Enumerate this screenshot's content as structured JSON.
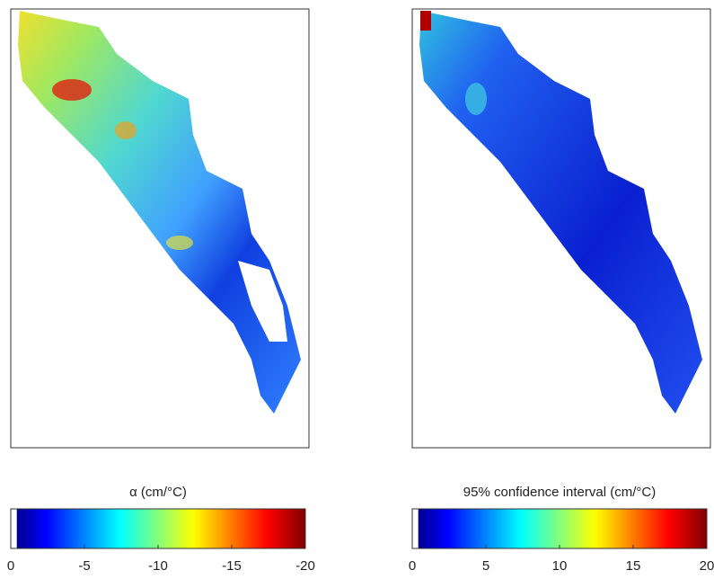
{
  "panels": [
    {
      "colorbar": {
        "label": "α (cm/°C)",
        "clim": [
          0,
          -20
        ],
        "ticks": [
          0,
          -5,
          -10,
          -15,
          -20
        ]
      }
    },
    {
      "colorbar": {
        "label": "95% confidence interval (cm/°C)",
        "clim": [
          0,
          20
        ],
        "ticks": [
          0,
          5,
          10,
          15,
          20
        ]
      }
    }
  ]
}
